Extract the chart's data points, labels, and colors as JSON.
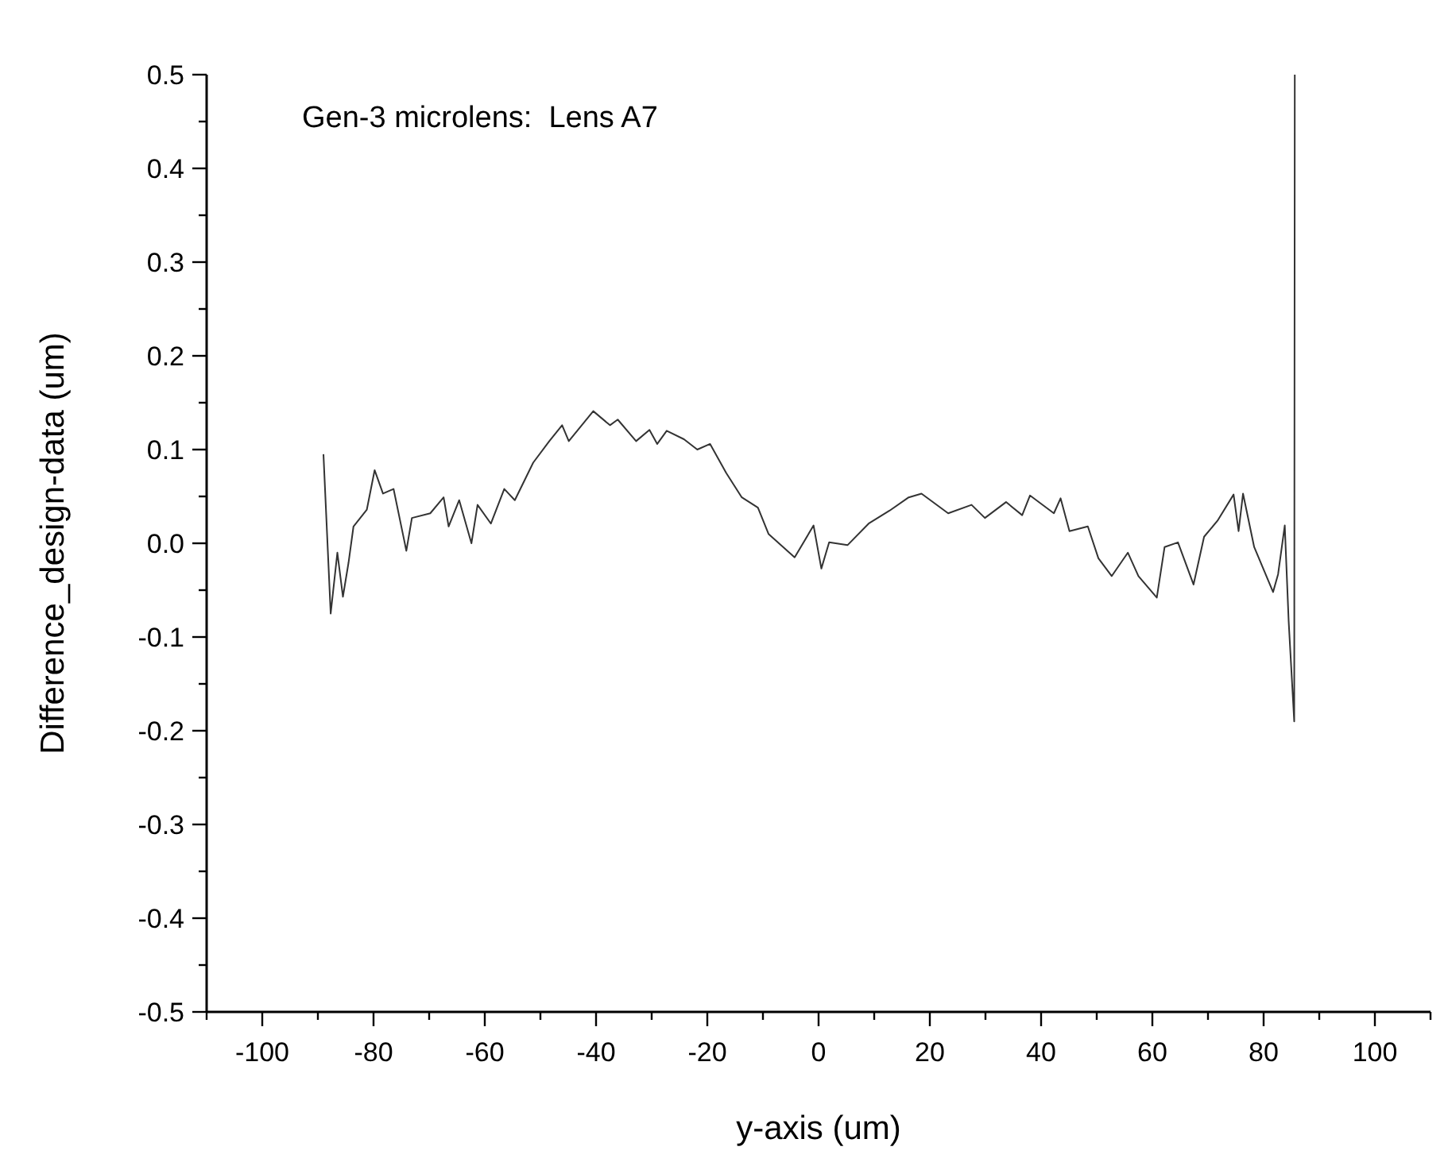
{
  "chart_data": {
    "type": "line",
    "xlabel": "y-axis (um)",
    "ylabel": "Difference_design-data (um)",
    "annotations": [
      "Gen-3 microlens:  Lens A7"
    ],
    "xlim": [
      -110,
      110
    ],
    "ylim": [
      -0.5,
      0.5
    ],
    "xticks": [
      {
        "value": -110,
        "label": null
      },
      -100,
      {
        "value": -90,
        "label": null
      },
      -80,
      {
        "value": -70,
        "label": null
      },
      -60,
      {
        "value": -50,
        "label": null
      },
      -40,
      {
        "value": -30,
        "label": null
      },
      -20,
      {
        "value": -10,
        "label": null
      },
      0,
      {
        "value": 10,
        "label": null
      },
      20,
      {
        "value": 30,
        "label": null
      },
      40,
      {
        "value": 50,
        "label": null
      },
      60,
      {
        "value": 70,
        "label": null
      },
      80,
      {
        "value": 90,
        "label": null
      },
      100,
      {
        "value": 110,
        "label": null
      }
    ],
    "yticks": [
      {
        "value": -0.5,
        "label": "-0.5"
      },
      {
        "value": -0.45,
        "label": null
      },
      {
        "value": -0.4,
        "label": "-0.4"
      },
      {
        "value": -0.35,
        "label": null
      },
      {
        "value": -0.3,
        "label": "-0.3"
      },
      {
        "value": -0.25,
        "label": null
      },
      {
        "value": -0.2,
        "label": "-0.2"
      },
      {
        "value": -0.15,
        "label": null
      },
      {
        "value": -0.1,
        "label": "-0.1"
      },
      {
        "value": -0.05,
        "label": null
      },
      {
        "value": 0,
        "label": "0.0"
      },
      {
        "value": 0.05,
        "label": null
      },
      {
        "value": 0.1,
        "label": "0.1"
      },
      {
        "value": 0.15,
        "label": null
      },
      {
        "value": 0.2,
        "label": "0.2"
      },
      {
        "value": 0.25,
        "label": null
      },
      {
        "value": 0.3,
        "label": "0.3"
      },
      {
        "value": 0.35,
        "label": null
      },
      {
        "value": 0.4,
        "label": "0.4"
      },
      {
        "value": 0.45,
        "label": null
      },
      {
        "value": 0.5,
        "label": "0.5"
      }
    ],
    "grid": false,
    "marker": "none",
    "line_style": "solid",
    "series": [
      {
        "color": "#333333",
        "x": [
          -89,
          -87.7,
          -86.5,
          -85.5,
          -84.5,
          -83.6,
          -81.2,
          -79.8,
          -78.3,
          -76.4,
          -74.1,
          -73.1,
          -69.8,
          -67.4,
          -66.5,
          -64.6,
          -62.4,
          -61.3,
          -58.9,
          -56.5,
          -54.6,
          -51.3,
          -48.4,
          -46.1,
          -44.9,
          -40.5,
          -37.5,
          -36.1,
          -32.8,
          -30.4,
          -29,
          -27.3,
          -24.2,
          -21.8,
          -19.5,
          -16.6,
          -13.8,
          -10.9,
          -9,
          -4.3,
          -0.9,
          0.5,
          1.9,
          5.2,
          9,
          12.8,
          16.2,
          18.5,
          23.3,
          27.5,
          29.9,
          33.7,
          36.6,
          38,
          42.3,
          43.5,
          45.1,
          48.4,
          50.3,
          52.7,
          55.6,
          57.5,
          60.8,
          62.2,
          64.6,
          67.4,
          69.3,
          71.7,
          74.6,
          75.5,
          76.3,
          78.3,
          81.7,
          82.6,
          83.8,
          84.5,
          85.5,
          85.6
        ],
        "values": [
          0.095,
          -0.075,
          -0.01,
          -0.057,
          -0.021,
          0.018,
          0.036,
          0.078,
          0.053,
          0.058,
          -0.008,
          0.027,
          0.032,
          0.049,
          0.018,
          0.046,
          0,
          0.041,
          0.021,
          0.058,
          0.046,
          0.086,
          0.109,
          0.126,
          0.109,
          0.141,
          0.126,
          0.132,
          0.109,
          0.121,
          0.106,
          0.12,
          0.111,
          0.1,
          0.106,
          0.075,
          0.049,
          0.038,
          0.01,
          -0.015,
          0.019,
          -0.027,
          0.001,
          -0.002,
          0.021,
          0.035,
          0.049,
          0.053,
          0.032,
          0.041,
          0.027,
          0.044,
          0.03,
          0.051,
          0.032,
          0.048,
          0.013,
          0.018,
          -0.016,
          -0.035,
          -0.01,
          -0.035,
          -0.058,
          -0.004,
          0.001,
          -0.044,
          0.007,
          0.024,
          0.052,
          0.013,
          0.053,
          -0.004,
          -0.052,
          -0.033,
          0.019,
          -0.083,
          -0.19,
          0.5
        ]
      }
    ]
  }
}
